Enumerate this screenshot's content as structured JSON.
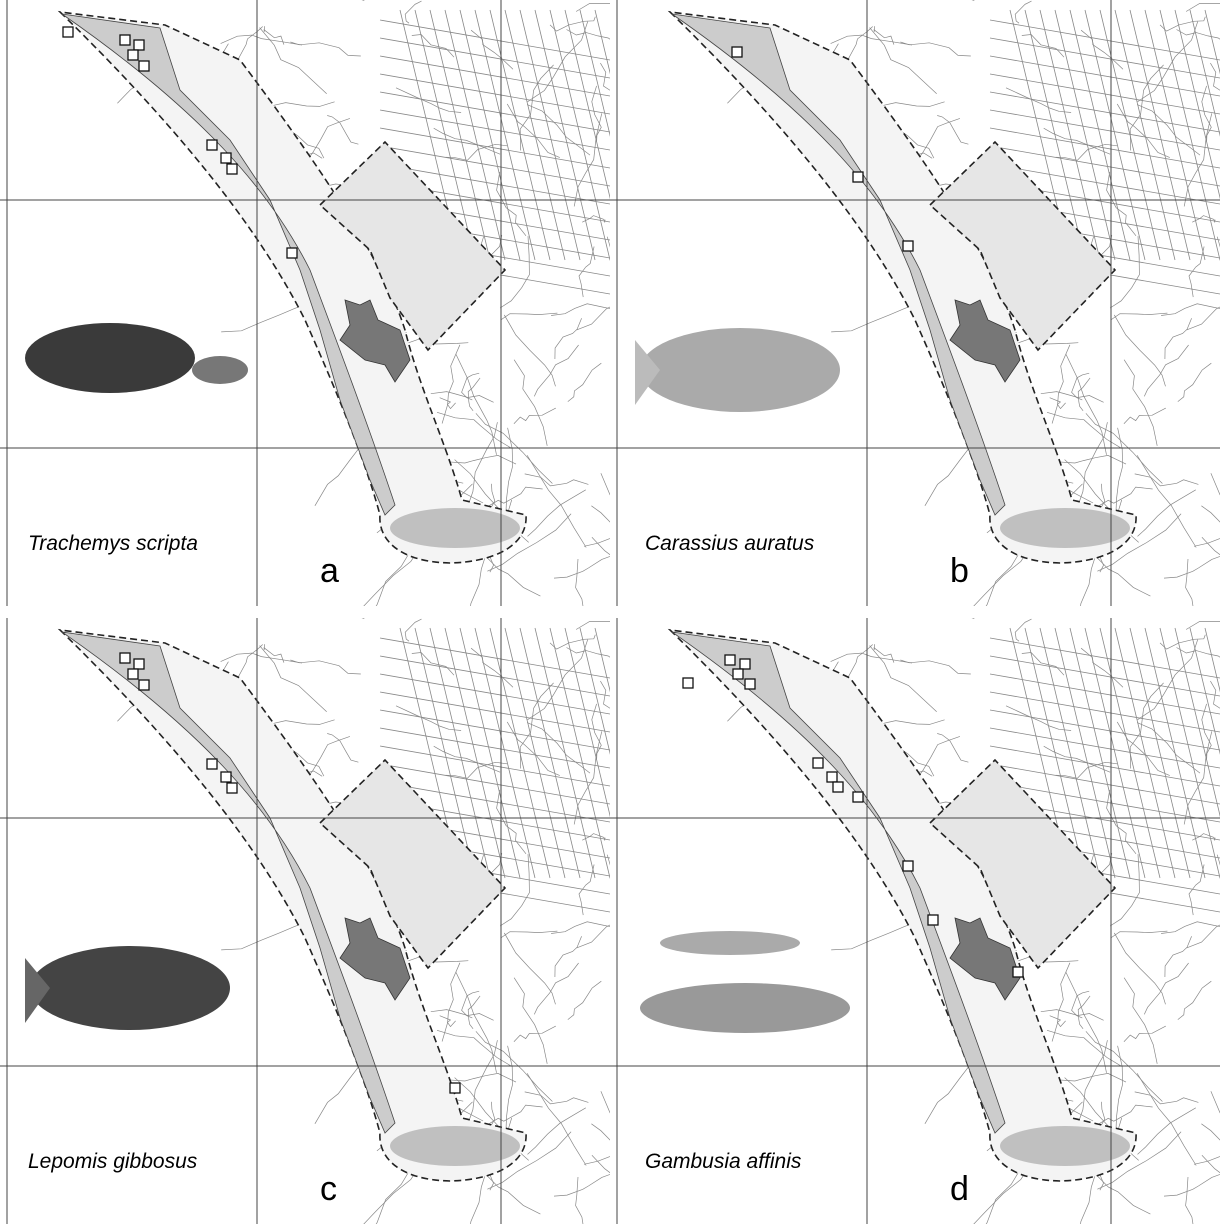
{
  "panels": [
    {
      "species": "Trachemys scripta",
      "letter": "a"
    },
    {
      "species": "Carassius auratus",
      "letter": "b"
    },
    {
      "species": "Lepomis gibbosus",
      "letter": "c"
    },
    {
      "species": "Gambusia affinis",
      "letter": "d"
    }
  ]
}
